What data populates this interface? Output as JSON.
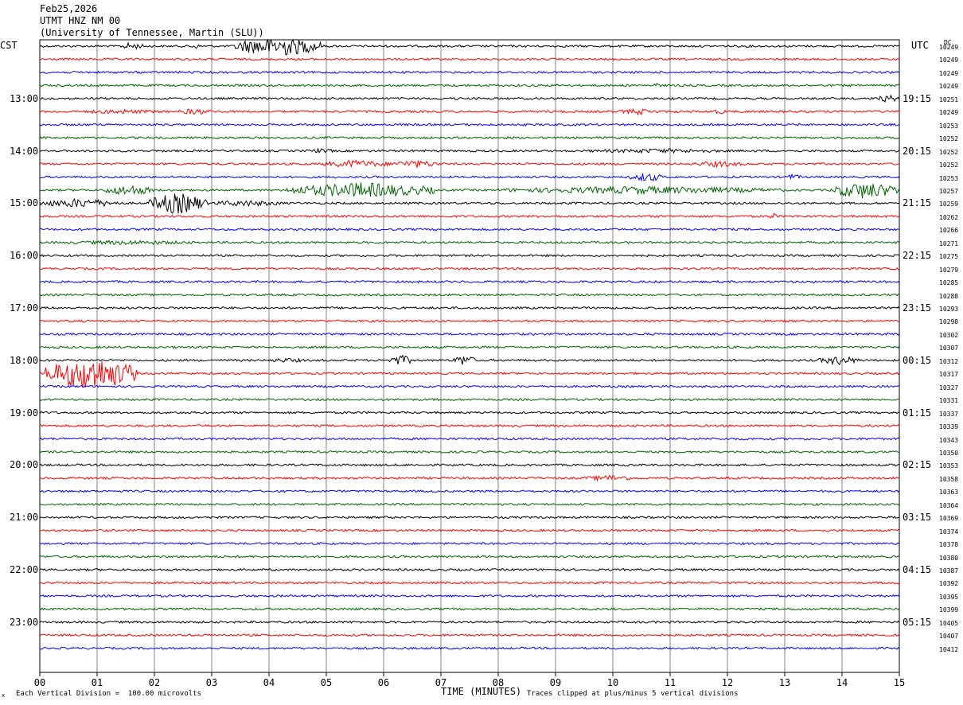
{
  "header": {
    "date": "Feb25,2026",
    "station": "UTMT HNZ NM 00",
    "network": "(University of Tennessee, Martin (SLU))"
  },
  "left_label": "CST",
  "right_label": "UTC",
  "dc_label": "DC",
  "footer": {
    "scale": "Each Vertical Division =  100.00 microvolts",
    "xlabel": "TIME (MINUTES)",
    "clip": "Traces clipped at plus/minus 5 vertical divisions",
    "mark": "x"
  },
  "colors": {
    "black": "#000000",
    "red": "#ff0000",
    "blue": "#0000ff",
    "green": "#006400",
    "grid": "#808080"
  },
  "chart_data": {
    "type": "line",
    "title": "UTMT HNZ NM 00",
    "xlabel": "TIME (MINUTES)",
    "xlim": [
      0,
      15
    ],
    "x_ticks": [
      "00",
      "01",
      "02",
      "03",
      "04",
      "05",
      "06",
      "07",
      "08",
      "09",
      "10",
      "11",
      "12",
      "13",
      "14",
      "15"
    ],
    "left_hour_labels": [
      {
        "row": 4,
        "label": "13:00"
      },
      {
        "row": 8,
        "label": "14:00"
      },
      {
        "row": 12,
        "label": "15:00"
      },
      {
        "row": 16,
        "label": "16:00"
      },
      {
        "row": 20,
        "label": "17:00"
      },
      {
        "row": 24,
        "label": "18:00"
      },
      {
        "row": 28,
        "label": "19:00"
      },
      {
        "row": 32,
        "label": "20:00"
      },
      {
        "row": 36,
        "label": "21:00"
      },
      {
        "row": 40,
        "label": "22:00"
      },
      {
        "row": 44,
        "label": "23:00"
      }
    ],
    "right_hour_labels": [
      {
        "row": 4,
        "label": "19:15"
      },
      {
        "row": 8,
        "label": "20:15"
      },
      {
        "row": 12,
        "label": "21:15"
      },
      {
        "row": 16,
        "label": "22:15"
      },
      {
        "row": 20,
        "label": "23:15"
      },
      {
        "row": 24,
        "label": "00:15"
      },
      {
        "row": 28,
        "label": "01:15"
      },
      {
        "row": 32,
        "label": "02:15"
      },
      {
        "row": 36,
        "label": "03:15"
      },
      {
        "row": 40,
        "label": "04:15"
      },
      {
        "row": 44,
        "label": "05:15"
      }
    ],
    "trace_color_cycle": [
      "black",
      "red",
      "blue",
      "green"
    ],
    "dc_offsets": [
      10249,
      10249,
      10249,
      10249,
      10251,
      10249,
      10253,
      10252,
      10252,
      10252,
      10253,
      10257,
      10259,
      10262,
      10266,
      10271,
      10275,
      10279,
      10285,
      10288,
      10293,
      10298,
      10302,
      10307,
      10312,
      10317,
      10327,
      10331,
      10337,
      10339,
      10343,
      10350,
      10353,
      10358,
      10363,
      10364,
      10369,
      10374,
      10378,
      10380,
      10387,
      10392,
      10395,
      10399,
      10405,
      10407,
      10412
    ],
    "events": [
      {
        "row": 0,
        "start": 1.4,
        "end": 1.8,
        "amp": 5
      },
      {
        "row": 0,
        "start": 2.6,
        "end": 2.8,
        "amp": 4
      },
      {
        "row": 0,
        "start": 3.4,
        "end": 4.9,
        "amp": 14
      },
      {
        "row": 3,
        "start": 10.6,
        "end": 10.9,
        "amp": 3
      },
      {
        "row": 4,
        "start": 7.2,
        "end": 7.3,
        "amp": 3
      },
      {
        "row": 4,
        "start": 14.6,
        "end": 15.0,
        "amp": 5
      },
      {
        "row": 5,
        "start": 0.6,
        "end": 2.2,
        "amp": 3
      },
      {
        "row": 5,
        "start": 2.4,
        "end": 3.0,
        "amp": 4
      },
      {
        "row": 5,
        "start": 10.1,
        "end": 10.8,
        "amp": 4
      },
      {
        "row": 5,
        "start": 11.6,
        "end": 12.1,
        "amp": 3
      },
      {
        "row": 8,
        "start": 4.6,
        "end": 5.2,
        "amp": 3
      },
      {
        "row": 8,
        "start": 9.4,
        "end": 12.2,
        "amp": 3
      },
      {
        "row": 9,
        "start": 4.9,
        "end": 6.1,
        "amp": 5
      },
      {
        "row": 9,
        "start": 6.1,
        "end": 7.0,
        "amp": 5
      },
      {
        "row": 9,
        "start": 11.4,
        "end": 12.3,
        "amp": 4
      },
      {
        "row": 10,
        "start": 10.3,
        "end": 10.9,
        "amp": 6
      },
      {
        "row": 10,
        "start": 13.0,
        "end": 13.3,
        "amp": 4
      },
      {
        "row": 11,
        "start": 1.1,
        "end": 2.0,
        "amp": 7
      },
      {
        "row": 11,
        "start": 4.3,
        "end": 6.9,
        "amp": 10
      },
      {
        "row": 11,
        "start": 8.0,
        "end": 13.0,
        "amp": 5
      },
      {
        "row": 11,
        "start": 13.8,
        "end": 15.0,
        "amp": 11
      },
      {
        "row": 12,
        "start": 0.0,
        "end": 1.4,
        "amp": 6
      },
      {
        "row": 12,
        "start": 1.9,
        "end": 2.9,
        "amp": 14
      },
      {
        "row": 12,
        "start": 2.9,
        "end": 4.3,
        "amp": 4
      },
      {
        "row": 13,
        "start": 12.7,
        "end": 12.9,
        "amp": 4
      },
      {
        "row": 15,
        "start": 0.2,
        "end": 2.9,
        "amp": 3
      },
      {
        "row": 24,
        "start": 3.9,
        "end": 4.7,
        "amp": 3
      },
      {
        "row": 24,
        "start": 6.1,
        "end": 6.5,
        "amp": 7
      },
      {
        "row": 24,
        "start": 7.2,
        "end": 7.6,
        "amp": 7
      },
      {
        "row": 24,
        "start": 13.6,
        "end": 14.3,
        "amp": 6
      },
      {
        "row": 25,
        "start": 0.1,
        "end": 1.7,
        "amp": 22
      },
      {
        "row": 33,
        "start": 9.5,
        "end": 10.4,
        "amp": 4
      }
    ]
  }
}
